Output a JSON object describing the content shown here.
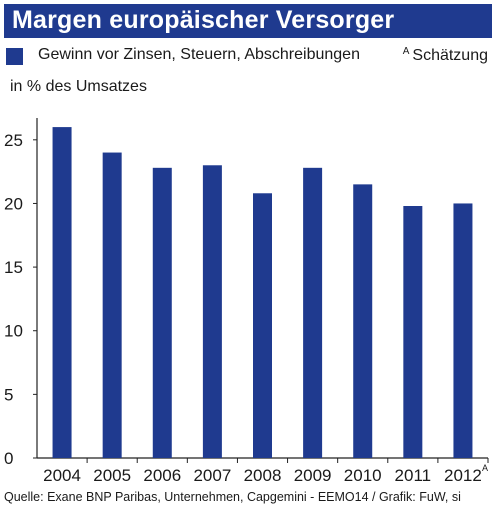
{
  "title": "Margen europäischer Versorger",
  "legend": "Gewinn vor Zinsen, Steuern, Abschreibungen",
  "note_marker": "A",
  "note_label": "Schätzung",
  "unit_label": "in % des Umsatzes",
  "source": "Quelle: Exane BNP Paribas, Unternehmen, Capgemini - EEMO14 / Grafik: FuW, si",
  "colors": {
    "accent": "#1f3a8f",
    "text": "#1a1a1a",
    "axis": "#222222",
    "grid": "#b0b0b0"
  },
  "chart_data": {
    "type": "bar",
    "categories": [
      "2004",
      "2005",
      "2006",
      "2007",
      "2008",
      "2009",
      "2010",
      "2011",
      "2012"
    ],
    "category_marks": [
      "",
      "",
      "",
      "",
      "",
      "",
      "",
      "",
      "A"
    ],
    "series": [
      {
        "name": "Gewinn vor Zinsen, Steuern, Abschreibungen",
        "values": [
          26.0,
          24.0,
          22.8,
          23.0,
          20.8,
          22.8,
          21.5,
          19.8,
          20.0
        ]
      }
    ],
    "ylim": [
      0,
      25
    ],
    "yticks": [
      0,
      5,
      10,
      15,
      20,
      25
    ],
    "ylabel": "in % des Umsatzes",
    "xlabel": "",
    "grid": false,
    "legend_position": "top-left"
  }
}
